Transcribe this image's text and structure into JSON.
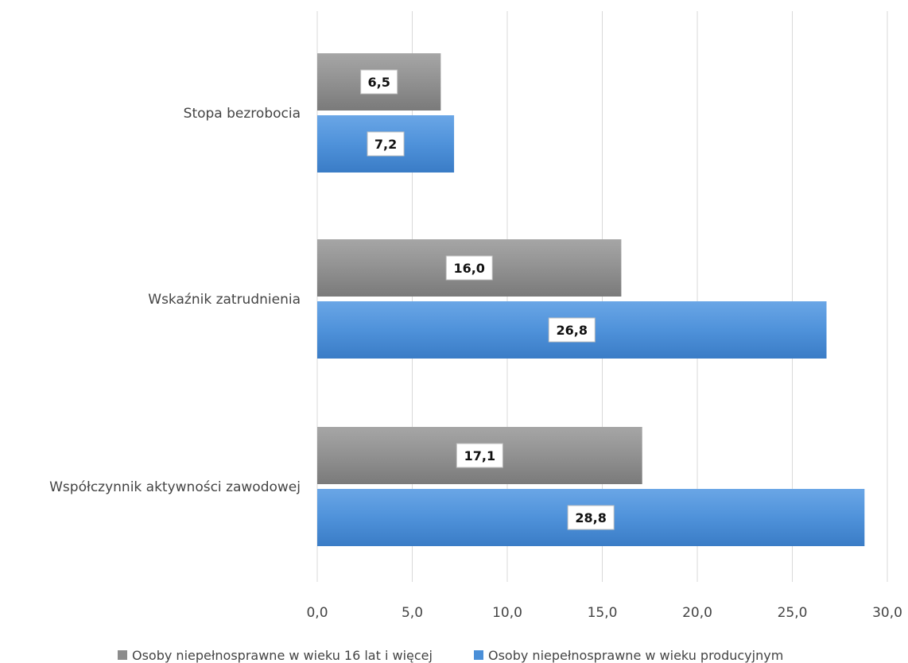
{
  "chart_data": {
    "type": "bar",
    "orientation": "horizontal",
    "categories": [
      "Stopa bezrobocia",
      "Wskaźnik zatrudnienia",
      "Współczynnik aktywności zawodowej"
    ],
    "series": [
      {
        "name": "Osoby niepełnosprawne w wieku 16 lat i więcej",
        "values": [
          6.5,
          16.0,
          17.1
        ],
        "labels": [
          "6,5",
          "16,0",
          "17,1"
        ],
        "color": "#8c8c8c"
      },
      {
        "name": "Osoby niepełnosprawne w wieku producyjnym",
        "values": [
          7.2,
          26.8,
          28.8
        ],
        "labels": [
          "7,2",
          "26,8",
          "28,8"
        ],
        "color": "#4a8fd8"
      }
    ],
    "xlim": [
      0,
      30
    ],
    "xticks": [
      0,
      5,
      10,
      15,
      20,
      25,
      30
    ],
    "xtick_labels": [
      "0,0",
      "5,0",
      "10,0",
      "15,0",
      "20,0",
      "25,0",
      "30,0"
    ],
    "grid": "vertical",
    "legend_position": "bottom"
  }
}
